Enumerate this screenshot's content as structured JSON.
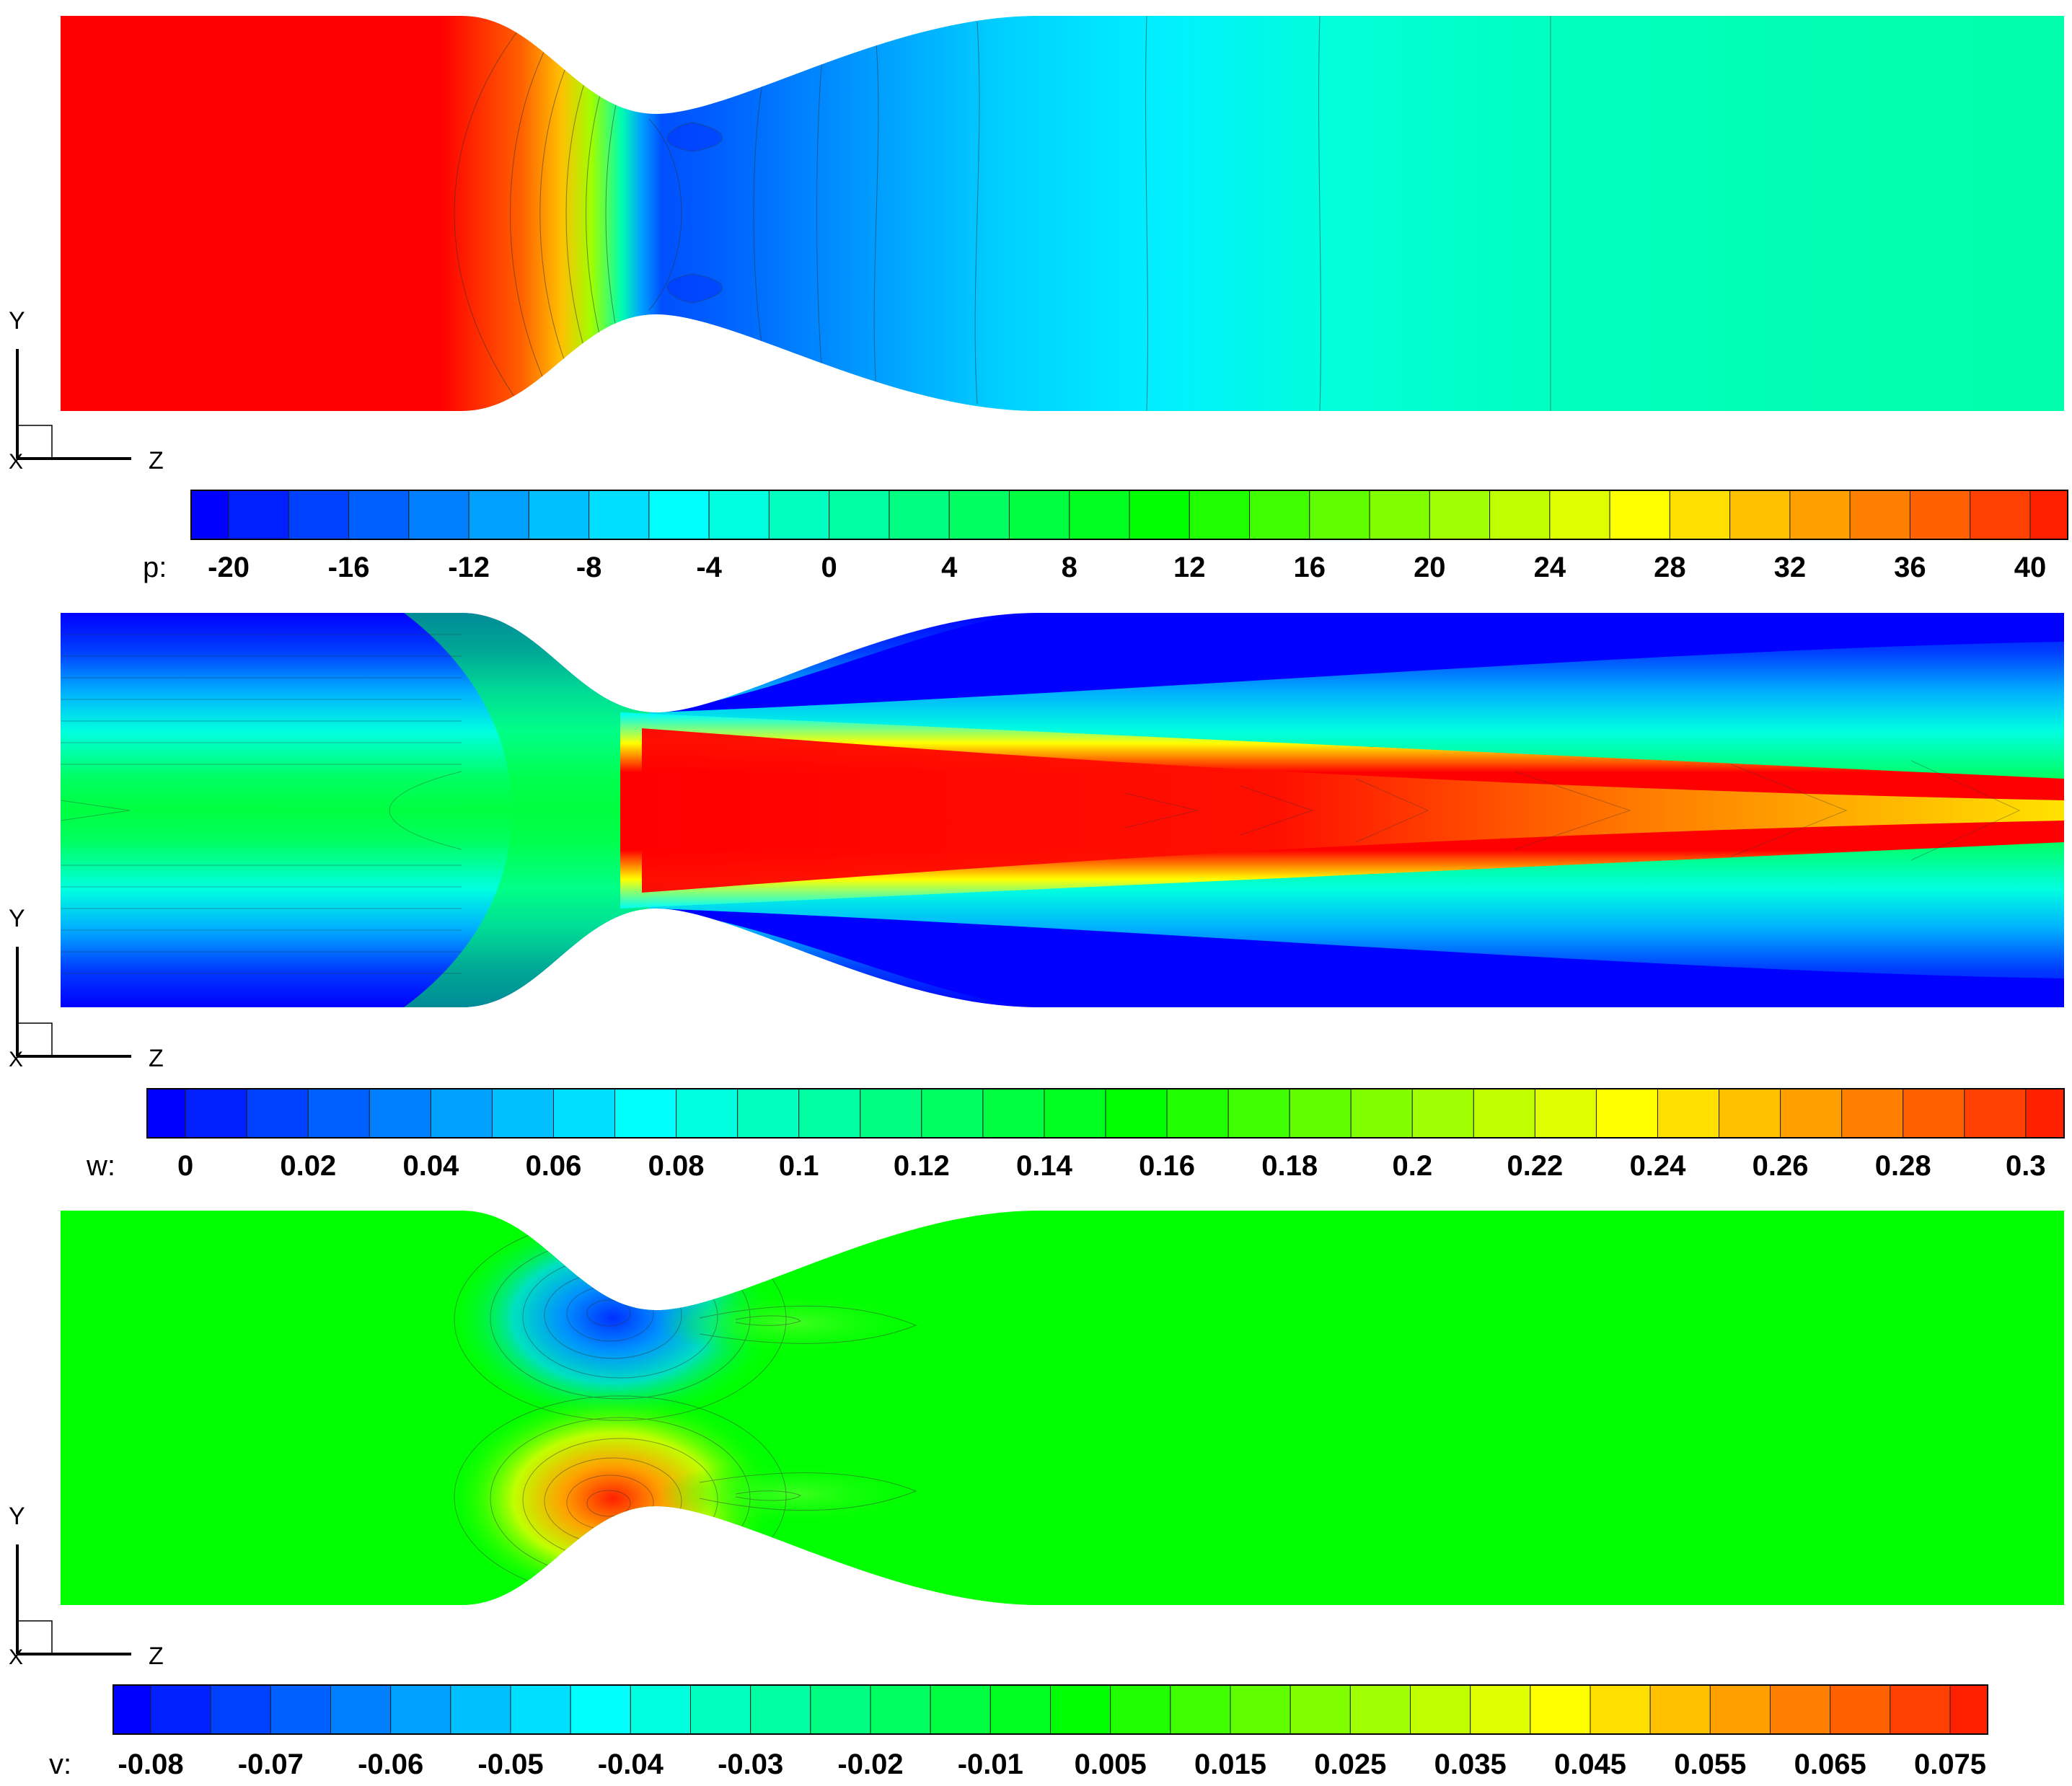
{
  "panels": [
    {
      "variable": "p",
      "legend_label": "p:",
      "ticks": [
        "-20",
        "-16",
        "-12",
        "-8",
        "-4",
        "0",
        "4",
        "8",
        "12",
        "16",
        "20",
        "24",
        "28",
        "32",
        "36",
        "40"
      ],
      "range": [
        -21,
        41
      ],
      "axis_labels": {
        "y": "Y",
        "z": "Z",
        "x": "X"
      }
    },
    {
      "variable": "w",
      "legend_label": "w:",
      "ticks": [
        "0",
        "0.02",
        "0.04",
        "0.06",
        "0.08",
        "0.1",
        "0.12",
        "0.14",
        "0.16",
        "0.18",
        "0.2",
        "0.22",
        "0.24",
        "0.26",
        "0.28",
        "0.3"
      ],
      "range": [
        -0.005,
        0.305
      ],
      "axis_labels": {
        "y": "Y",
        "z": "Z",
        "x": "X"
      }
    },
    {
      "variable": "v",
      "legend_label": "v:",
      "ticks": [
        "-0.08",
        "-0.07",
        "-0.06",
        "-0.05",
        "-0.04",
        "-0.03",
        "-0.02",
        "-0.01",
        "0.005",
        "0.015",
        "0.025",
        "0.035",
        "0.045",
        "0.055",
        "0.065",
        "0.075"
      ],
      "range": [
        -0.085,
        0.085
      ],
      "axis_labels": {
        "y": "Y",
        "z": "Z",
        "x": "X"
      }
    }
  ],
  "colors": {
    "colormap": [
      "#0000ff",
      "#0080ff",
      "#00ffff",
      "#00ff80",
      "#00ff00",
      "#80ff00",
      "#ffff00",
      "#ff8000",
      "#ff0000"
    ],
    "p_inlet": "#ff0000",
    "p_outlet": "#00ffaa",
    "w_core": "#ff0000",
    "w_wall": "#0000ff",
    "v_background": "#00ff00"
  }
}
